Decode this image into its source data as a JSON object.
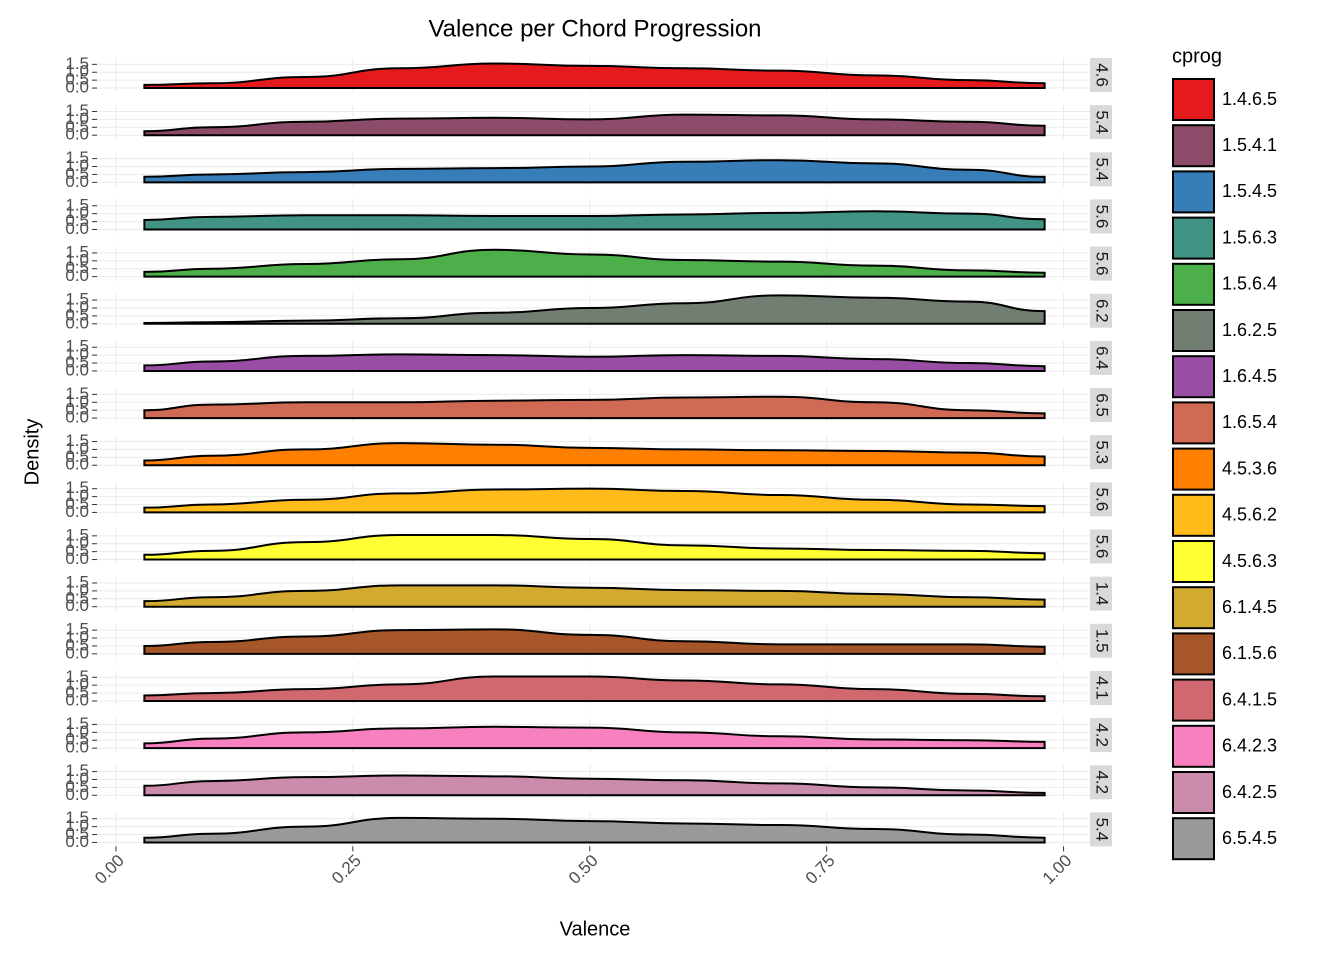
{
  "chart_data": {
    "type": "density",
    "title": "Valence per Chord Progression",
    "x_label": "Valence",
    "y_label": "Density",
    "legend_title": "cprog",
    "x": [
      0.03,
      0.1,
      0.2,
      0.3,
      0.4,
      0.5,
      0.6,
      0.7,
      0.8,
      0.9,
      0.98
    ],
    "xlim": [
      -0.02,
      1.03
    ],
    "xticks": [
      {
        "value": 0,
        "label": "0.00"
      },
      {
        "value": 0.25,
        "label": "0.25"
      },
      {
        "value": 0.5,
        "label": "0.50"
      },
      {
        "value": 0.75,
        "label": "0.75"
      },
      {
        "value": 1,
        "label": "1.00"
      }
    ],
    "ylim": [
      -0.25,
      1.9
    ],
    "yticks": [
      {
        "value": 0,
        "label": "0.0"
      },
      {
        "value": 0.5,
        "label": "0.5"
      },
      {
        "value": 1,
        "label": "1.0"
      },
      {
        "value": 1.5,
        "label": "1.5"
      }
    ],
    "grid": true,
    "series": [
      {
        "name": "1.4.6.5",
        "strip_label": "4.6",
        "color": "#e41a1c",
        "values": [
          0.2,
          0.3,
          0.7,
          1.25,
          1.55,
          1.4,
          1.25,
          1.1,
          0.8,
          0.5,
          0.3
        ]
      },
      {
        "name": "1.5.4.1",
        "strip_label": "5.4",
        "color": "#8d4b6a",
        "values": [
          0.25,
          0.5,
          0.85,
          1.05,
          1.1,
          1.0,
          1.3,
          1.25,
          1.0,
          0.85,
          0.6
        ]
      },
      {
        "name": "1.5.4.5",
        "strip_label": "5.4",
        "color": "#377eb8",
        "values": [
          0.35,
          0.5,
          0.65,
          0.85,
          0.9,
          1.0,
          1.3,
          1.4,
          1.2,
          0.8,
          0.35
        ]
      },
      {
        "name": "1.5.6.3",
        "strip_label": "5.6",
        "color": "#419485",
        "values": [
          0.6,
          0.8,
          0.9,
          0.9,
          0.85,
          0.85,
          0.95,
          1.05,
          1.15,
          1.0,
          0.65
        ]
      },
      {
        "name": "1.5.6.4",
        "strip_label": "5.6",
        "color": "#4daf4a",
        "values": [
          0.3,
          0.5,
          0.8,
          1.1,
          1.7,
          1.4,
          1.05,
          0.95,
          0.7,
          0.4,
          0.25
        ]
      },
      {
        "name": "1.6.2.5",
        "strip_label": "6.2",
        "color": "#727e72",
        "values": [
          0.05,
          0.1,
          0.2,
          0.35,
          0.7,
          1.0,
          1.3,
          1.8,
          1.65,
          1.4,
          0.8
        ]
      },
      {
        "name": "1.6.4.5",
        "strip_label": "6.4",
        "color": "#984ea3",
        "values": [
          0.35,
          0.6,
          0.95,
          1.05,
          1.0,
          0.9,
          1.0,
          0.95,
          0.75,
          0.5,
          0.3
        ]
      },
      {
        "name": "1.6.5.4",
        "strip_label": "6.5",
        "color": "#d06a54",
        "values": [
          0.5,
          0.85,
          1.0,
          1.0,
          1.1,
          1.15,
          1.3,
          1.35,
          1.0,
          0.5,
          0.3
        ]
      },
      {
        "name": "4.5.3.6",
        "strip_label": "5.3",
        "color": "#ff7f00",
        "values": [
          0.3,
          0.6,
          1.0,
          1.4,
          1.3,
          1.1,
          1.0,
          0.95,
          0.9,
          0.8,
          0.55
        ]
      },
      {
        "name": "4.5.6.2",
        "strip_label": "5.6",
        "color": "#ffbb19",
        "values": [
          0.3,
          0.5,
          0.8,
          1.2,
          1.45,
          1.5,
          1.35,
          1.1,
          0.8,
          0.5,
          0.4
        ]
      },
      {
        "name": "4.5.6.3",
        "strip_label": "5.6",
        "color": "#ffff33",
        "values": [
          0.3,
          0.55,
          1.1,
          1.55,
          1.55,
          1.3,
          0.9,
          0.7,
          0.6,
          0.55,
          0.4
        ]
      },
      {
        "name": "6.1.4.5",
        "strip_label": "1.4",
        "color": "#d2aa2f",
        "values": [
          0.35,
          0.6,
          1.0,
          1.35,
          1.35,
          1.2,
          1.05,
          1.0,
          0.8,
          0.6,
          0.45
        ]
      },
      {
        "name": "6.1.5.6",
        "strip_label": "1.5",
        "color": "#a65628",
        "values": [
          0.5,
          0.75,
          1.1,
          1.5,
          1.55,
          1.2,
          0.8,
          0.6,
          0.6,
          0.6,
          0.45
        ]
      },
      {
        "name": "6.4.1.5",
        "strip_label": "4.1",
        "color": "#d16870",
        "values": [
          0.35,
          0.5,
          0.75,
          1.05,
          1.55,
          1.55,
          1.3,
          1.05,
          0.75,
          0.45,
          0.3
        ]
      },
      {
        "name": "6.4.2.3",
        "strip_label": "4.2",
        "color": "#f781bf",
        "values": [
          0.3,
          0.6,
          1.0,
          1.25,
          1.35,
          1.3,
          1.0,
          0.75,
          0.55,
          0.5,
          0.4
        ]
      },
      {
        "name": "6.4.2.5",
        "strip_label": "4.2",
        "color": "#cb8cab",
        "values": [
          0.6,
          0.9,
          1.15,
          1.25,
          1.2,
          1.05,
          0.95,
          0.75,
          0.5,
          0.3,
          0.15
        ]
      },
      {
        "name": "6.5.4.5",
        "strip_label": "5.4",
        "color": "#999999",
        "values": [
          0.3,
          0.55,
          1.0,
          1.55,
          1.5,
          1.35,
          1.2,
          1.1,
          0.85,
          0.5,
          0.3
        ]
      }
    ]
  }
}
